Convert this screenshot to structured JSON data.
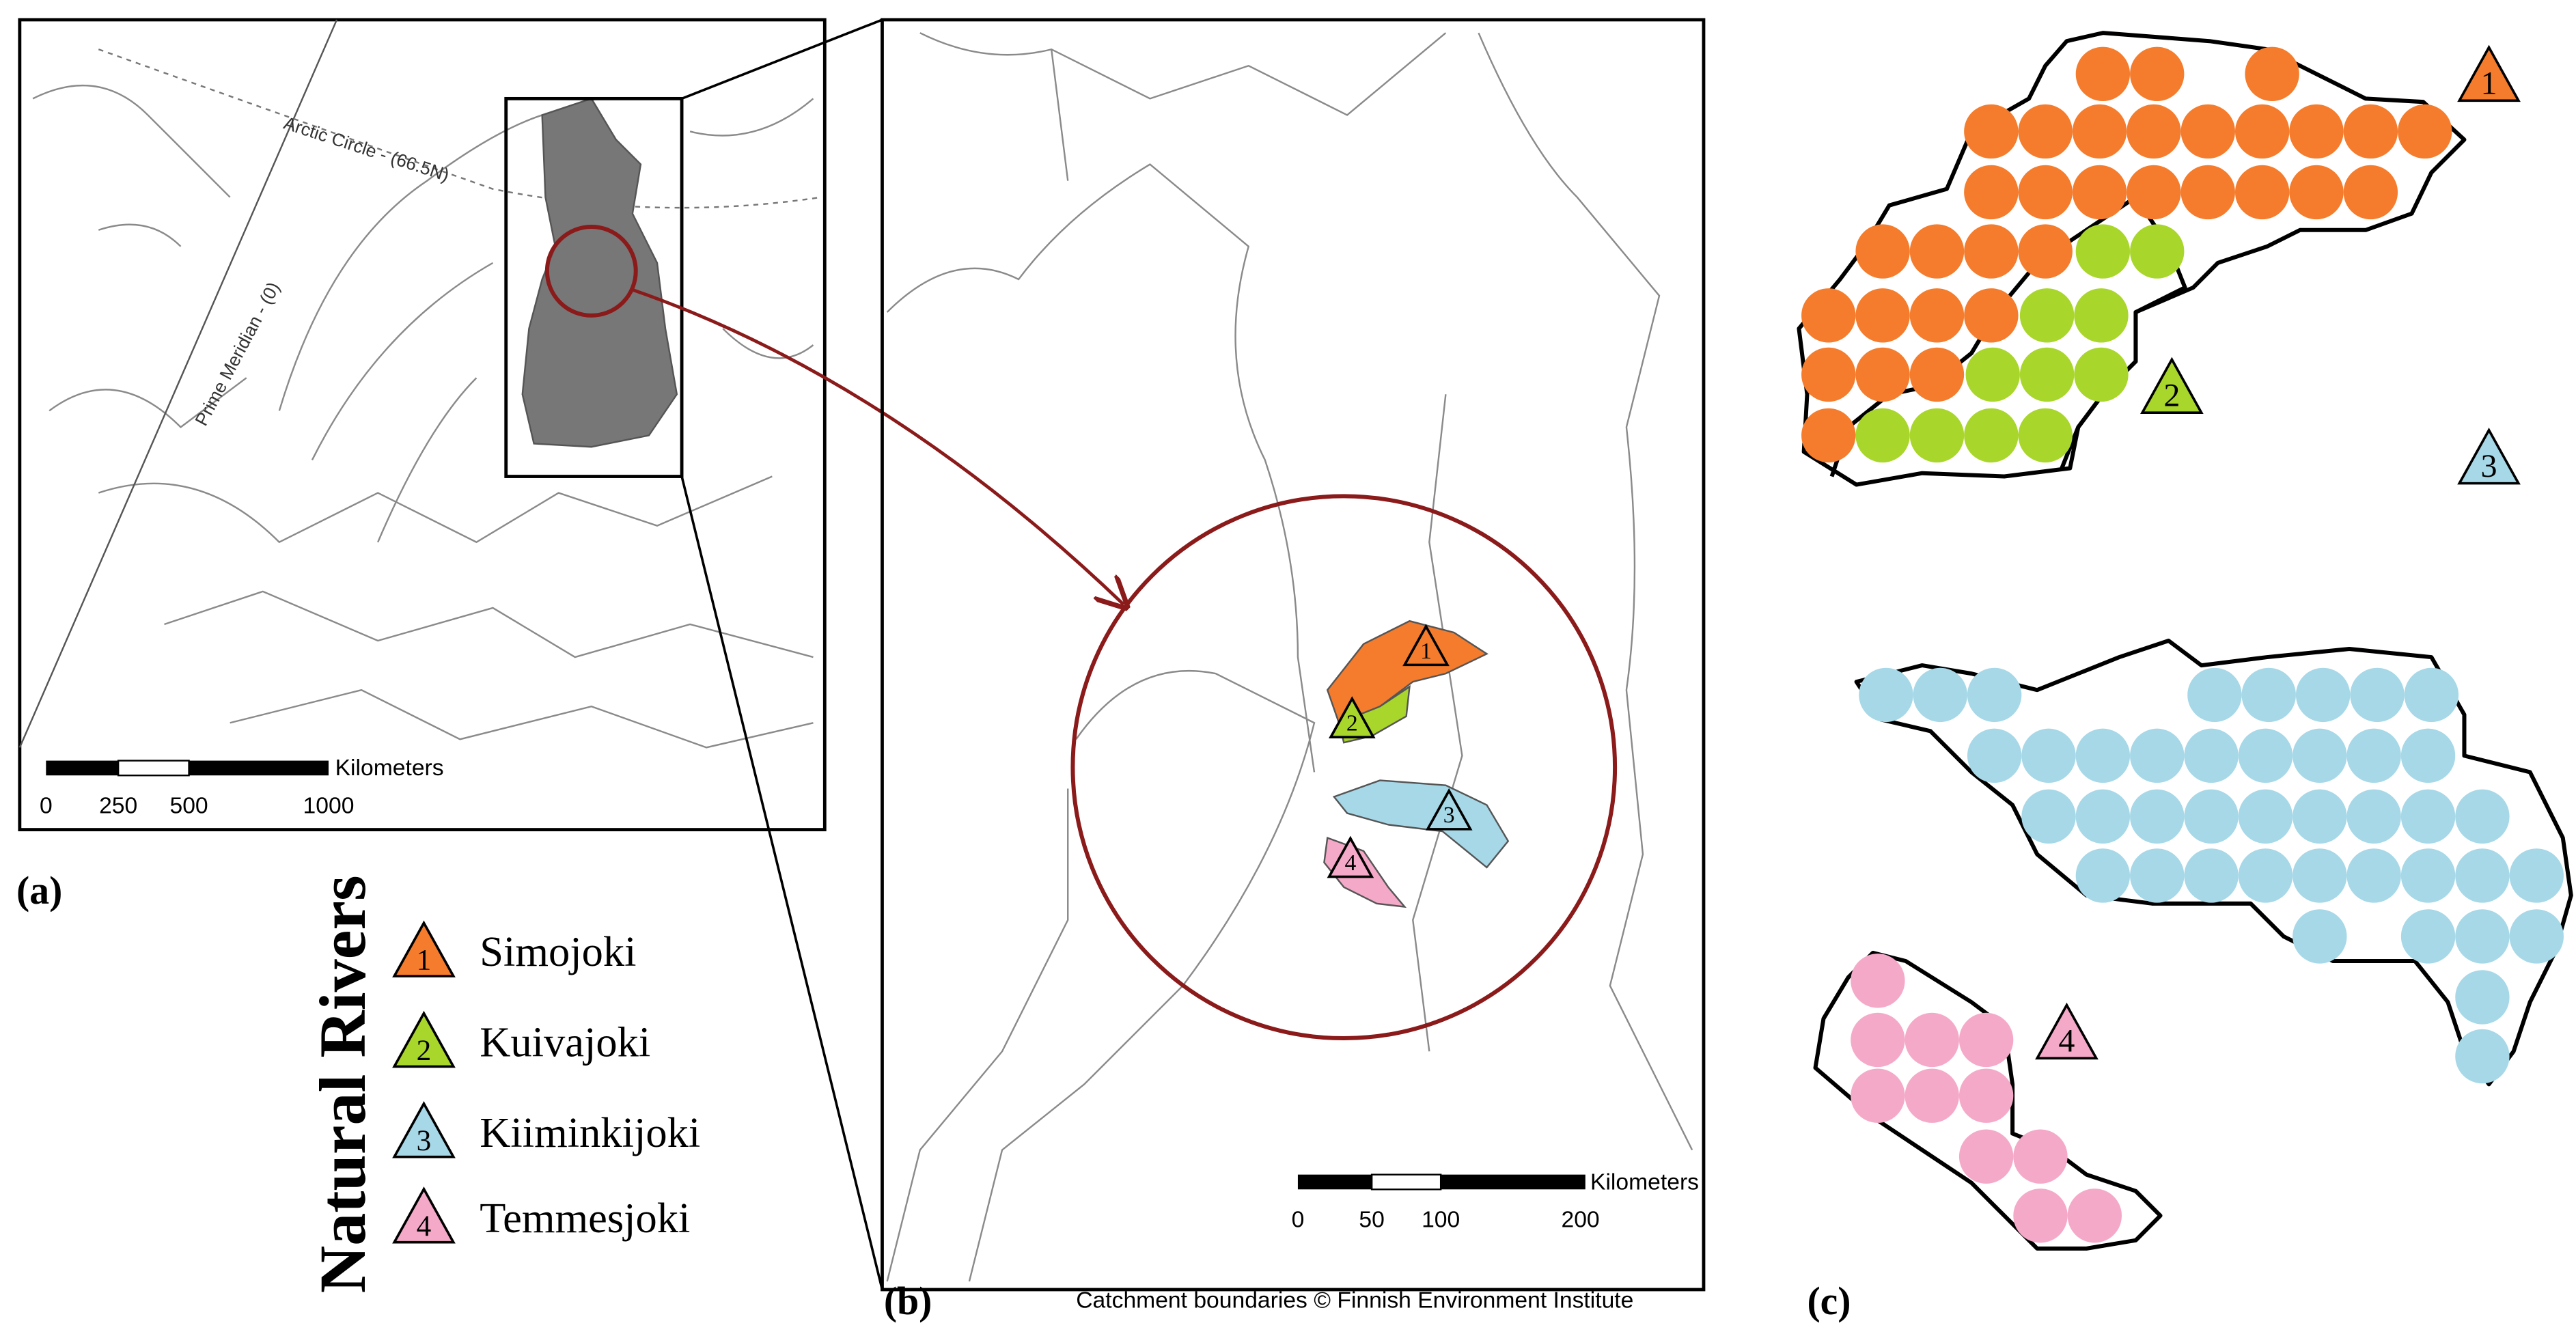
{
  "panels": {
    "a": {
      "label": "(a)",
      "prime_meridian": "Prime Meridian - (0)",
      "arctic_circle": "Arctic Circle - (66.5N)",
      "scale_bar": {
        "unit": "Kilometers",
        "ticks": [
          "0",
          "250",
          "500",
          "1000"
        ]
      }
    },
    "b": {
      "label": "(b)",
      "credit": "Catchment boundaries © Finnish Environment Institute",
      "scale_bar": {
        "unit": "Kilometers",
        "ticks": [
          "0",
          "50",
          "100",
          "200"
        ]
      }
    },
    "c": {
      "label": "(c)"
    }
  },
  "legend": {
    "title": "Natural Rivers",
    "items": [
      {
        "number": "1",
        "name": "Simojoki",
        "color": "#f47c2c"
      },
      {
        "number": "2",
        "name": "Kuivajoki",
        "color": "#a9d62a"
      },
      {
        "number": "3",
        "name": "Kiiminkijoki",
        "color": "#a6d8e8"
      },
      {
        "number": "4",
        "name": "Temmesjoki",
        "color": "#f5a9c8"
      }
    ]
  }
}
